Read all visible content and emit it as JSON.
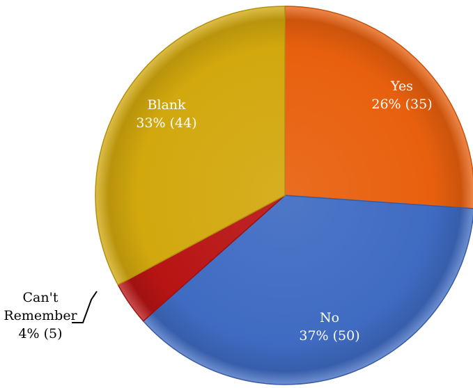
{
  "chart_data": {
    "type": "pie",
    "title": "",
    "slices": [
      {
        "name": "Yes",
        "value": 35,
        "percent": "26%",
        "display": "26% (35)",
        "color": "#E8600E"
      },
      {
        "name": "No",
        "value": 50,
        "percent": "37%",
        "display": "37% (50)",
        "color": "#3F6BC2"
      },
      {
        "name": "Can't Remember",
        "value": 5,
        "percent": "4%",
        "display": "4% (5)",
        "color": "#B81414"
      },
      {
        "name": "Blank",
        "value": 44,
        "percent": "33%",
        "display": "33% (44)",
        "color": "#D2A80E"
      }
    ],
    "start_angle_deg": 0,
    "direction": "clockwise",
    "style": "3D beveled pie",
    "label_colors": {
      "inside": "#ffffff",
      "outside": "#000000"
    }
  }
}
